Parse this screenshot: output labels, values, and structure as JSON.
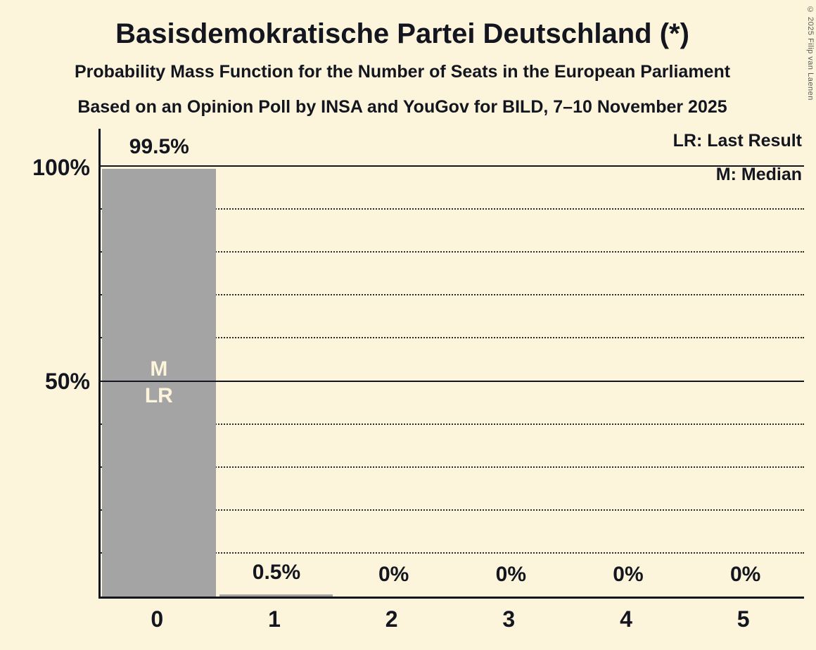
{
  "title": "Basisdemokratische Partei Deutschland (*)",
  "subtitle1": "Probability Mass Function for the Number of Seats in the European Parliament",
  "subtitle2": "Based on an Opinion Poll by INSA and YouGov for BILD, 7–10 November 2025",
  "legend": {
    "lr": "LR: Last Result",
    "m": "M: Median"
  },
  "copyright": "© 2025 Filip van Laenen",
  "colors": {
    "background": "#fcf5dc",
    "bar": "#a4a4a4",
    "text": "#14161f",
    "bar_label": "#fcf5dc"
  },
  "y_axis": {
    "ticks": [
      {
        "label": "100%",
        "value": 100
      },
      {
        "label": "50%",
        "value": 50
      }
    ]
  },
  "chart_data": {
    "type": "bar",
    "title": "Basisdemokratische Partei Deutschland (*) — Probability Mass Function for the Number of Seats in the European Parliament",
    "categories": [
      "0",
      "1",
      "2",
      "3",
      "4",
      "5"
    ],
    "values": [
      99.5,
      0.5,
      0,
      0,
      0,
      0
    ],
    "value_labels": [
      "99.5%",
      "0.5%",
      "0%",
      "0%",
      "0%",
      "0%"
    ],
    "xlabel": "",
    "ylabel": "",
    "ylim": [
      0,
      100
    ],
    "grid": "horizontal",
    "legend_position": "top-right",
    "solid_gridlines": [
      50,
      100
    ],
    "dotted_gridlines": [
      10,
      20,
      30,
      40,
      60,
      70,
      80,
      90
    ],
    "bar_annotations": [
      [
        "M",
        "LR"
      ],
      [],
      [],
      [],
      [],
      []
    ],
    "median_seats": 0,
    "last_result_seats": 0
  }
}
